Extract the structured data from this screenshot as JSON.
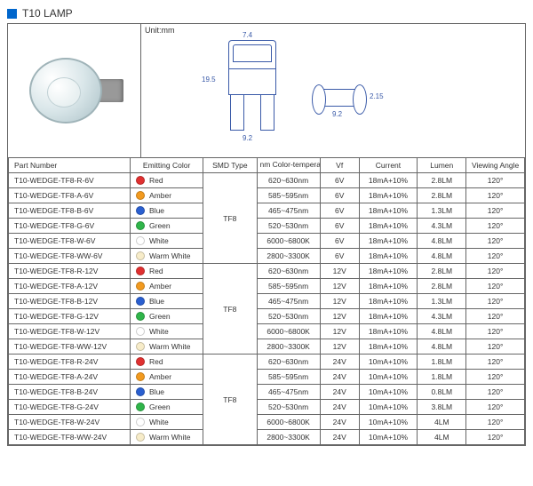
{
  "title": "T10  LAMP",
  "unit_label": "Unit:mm",
  "diagram_dims": {
    "width_top": "7.4",
    "height": "19.5",
    "width_bottom": "9.2",
    "side_w": "9.2",
    "side_h": "2.15"
  },
  "columns": [
    "Part Number",
    "Emitting Color",
    "SMD Type",
    "nm Color-temperature",
    "Vf",
    "Current",
    "Lumen",
    "Viewing Angle"
  ],
  "smd_type": "TF8",
  "color_hex": {
    "Red": "#e03030",
    "Amber": "#f29a1f",
    "Blue": "#2a5fd0",
    "Green": "#2fb54a",
    "White": "#ffffff",
    "Warm White": "#f7ecc9"
  },
  "groups": [
    {
      "rows": [
        {
          "pn": "T10-WEDGE-TF8-R-6V",
          "color": "Red",
          "nm": "620~630nm",
          "vf": "6V",
          "cur": "18mA+10%",
          "lum": "2.8LM",
          "va": "120°"
        },
        {
          "pn": "T10-WEDGE-TF8-A-6V",
          "color": "Amber",
          "nm": "585~595nm",
          "vf": "6V",
          "cur": "18mA+10%",
          "lum": "2.8LM",
          "va": "120°"
        },
        {
          "pn": "T10-WEDGE-TF8-B-6V",
          "color": "Blue",
          "nm": "465~475nm",
          "vf": "6V",
          "cur": "18mA+10%",
          "lum": "1.3LM",
          "va": "120°"
        },
        {
          "pn": "T10-WEDGE-TF8-G-6V",
          "color": "Green",
          "nm": "520~530nm",
          "vf": "6V",
          "cur": "18mA+10%",
          "lum": "4.3LM",
          "va": "120°"
        },
        {
          "pn": "T10-WEDGE-TF8-W-6V",
          "color": "White",
          "nm": "6000~6800K",
          "vf": "6V",
          "cur": "18mA+10%",
          "lum": "4.8LM",
          "va": "120°"
        },
        {
          "pn": "T10-WEDGE-TF8-WW-6V",
          "color": "Warm White",
          "nm": "2800~3300K",
          "vf": "6V",
          "cur": "18mA+10%",
          "lum": "4.8LM",
          "va": "120°"
        }
      ]
    },
    {
      "rows": [
        {
          "pn": "T10-WEDGE-TF8-R-12V",
          "color": "Red",
          "nm": "620~630nm",
          "vf": "12V",
          "cur": "18mA+10%",
          "lum": "2.8LM",
          "va": "120°"
        },
        {
          "pn": "T10-WEDGE-TF8-A-12V",
          "color": "Amber",
          "nm": "585~595nm",
          "vf": "12V",
          "cur": "18mA+10%",
          "lum": "2.8LM",
          "va": "120°"
        },
        {
          "pn": "T10-WEDGE-TF8-B-12V",
          "color": "Blue",
          "nm": "465~475nm",
          "vf": "12V",
          "cur": "18mA+10%",
          "lum": "1.3LM",
          "va": "120°"
        },
        {
          "pn": "T10-WEDGE-TF8-G-12V",
          "color": "Green",
          "nm": "520~530nm",
          "vf": "12V",
          "cur": "18mA+10%",
          "lum": "4.3LM",
          "va": "120°"
        },
        {
          "pn": "T10-WEDGE-TF8-W-12V",
          "color": "White",
          "nm": "6000~6800K",
          "vf": "12V",
          "cur": "18mA+10%",
          "lum": "4.8LM",
          "va": "120°"
        },
        {
          "pn": "T10-WEDGE-TF8-WW-12V",
          "color": "Warm White",
          "nm": "2800~3300K",
          "vf": "12V",
          "cur": "18mA+10%",
          "lum": "4.8LM",
          "va": "120°"
        }
      ]
    },
    {
      "rows": [
        {
          "pn": "T10-WEDGE-TF8-R-24V",
          "color": "Red",
          "nm": "620~630nm",
          "vf": "24V",
          "cur": "10mA+10%",
          "lum": "1.8LM",
          "va": "120°"
        },
        {
          "pn": "T10-WEDGE-TF8-A-24V",
          "color": "Amber",
          "nm": "585~595nm",
          "vf": "24V",
          "cur": "10mA+10%",
          "lum": "1.8LM",
          "va": "120°"
        },
        {
          "pn": "T10-WEDGE-TF8-B-24V",
          "color": "Blue",
          "nm": "465~475nm",
          "vf": "24V",
          "cur": "10mA+10%",
          "lum": "0.8LM",
          "va": "120°"
        },
        {
          "pn": "T10-WEDGE-TF8-G-24V",
          "color": "Green",
          "nm": "520~530nm",
          "vf": "24V",
          "cur": "10mA+10%",
          "lum": "3.8LM",
          "va": "120°"
        },
        {
          "pn": "T10-WEDGE-TF8-W-24V",
          "color": "White",
          "nm": "6000~6800K",
          "vf": "24V",
          "cur": "10mA+10%",
          "lum": "4LM",
          "va": "120°"
        },
        {
          "pn": "T10-WEDGE-TF8-WW-24V",
          "color": "Warm White",
          "nm": "2800~3300K",
          "vf": "24V",
          "cur": "10mA+10%",
          "lum": "4LM",
          "va": "120°"
        }
      ]
    }
  ]
}
